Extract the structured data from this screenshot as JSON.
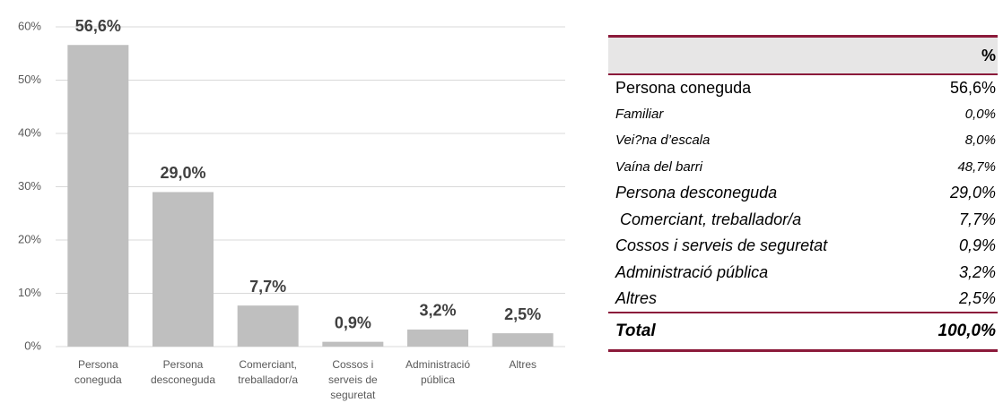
{
  "chart_data": {
    "type": "bar",
    "categories": [
      "Persona coneguda",
      "Persona desconeguda",
      "Comerciant, treballador/a",
      "Cossos i serveis de seguretat",
      "Administració pública",
      "Altres"
    ],
    "values": [
      56.6,
      29.0,
      7.7,
      0.9,
      3.2,
      2.5
    ],
    "value_labels": [
      "56,6%",
      "29,0%",
      "7,7%",
      "0,9%",
      "3,2%",
      "2,5%"
    ],
    "color": "#bfbfbf",
    "ylim": [
      0,
      60
    ],
    "yticks": [
      {
        "value": 0,
        "label": "0%"
      },
      {
        "value": 10,
        "label": "10%"
      },
      {
        "value": 20,
        "label": "20%"
      },
      {
        "value": 30,
        "label": "30%"
      },
      {
        "value": 40,
        "label": "40%"
      },
      {
        "value": 50,
        "label": "50%"
      },
      {
        "value": 60,
        "label": "60%"
      }
    ],
    "grid": true
  },
  "table": {
    "header": [
      "",
      "%"
    ],
    "rows": [
      [
        "Persona coneguda",
        "56,6%"
      ],
      [
        "Familiar",
        "0,0%"
      ],
      [
        "Vei?na d’escala",
        "8,0%"
      ],
      [
        "Vaína del barri",
        "48,7%"
      ],
      [
        "Persona desconeguda",
        "29,0%"
      ],
      [
        " Comerciant, treballador/a",
        "7,7%"
      ],
      [
        "Cossos i serveis de seguretat",
        "0,9%"
      ],
      [
        "Administració pública",
        "3,2%"
      ],
      [
        "Altres",
        "2,5%"
      ]
    ],
    "total": [
      "Total",
      "100,0%"
    ]
  }
}
